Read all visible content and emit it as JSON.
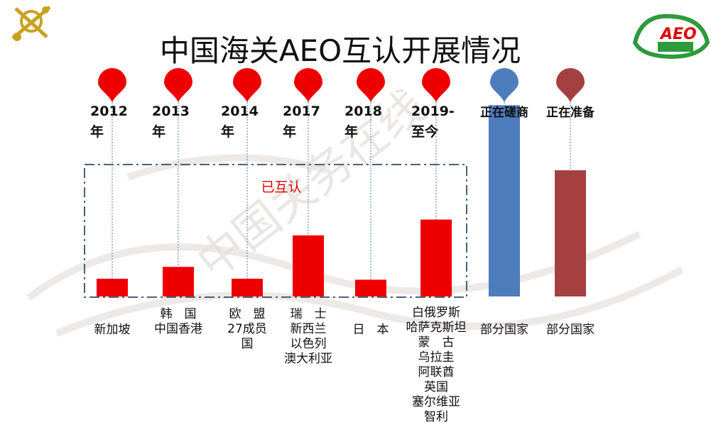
{
  "title": "中国海关AEO互认开展情况",
  "logo_right_text": "AEO",
  "watermark": "中国关务在线",
  "colors": {
    "red": "#ee0000",
    "blue": "#4e7dbd",
    "brown": "#a4403f",
    "dash": "#4a6078"
  },
  "chart_data": {
    "type": "bar",
    "title": "中国海关AEO互认开展情况",
    "group_label": "已互认",
    "ylim": [
      0,
      10
    ],
    "categories": [
      {
        "key": "2012",
        "year": [
          "2012",
          "年"
        ],
        "labels": [
          "新加坡"
        ],
        "value": 0.9,
        "color": "#ee0000",
        "marker": "#ee0000"
      },
      {
        "key": "2013",
        "year": [
          "2013",
          "年"
        ],
        "labels": [
          "韩　国",
          "中国香港"
        ],
        "value": 1.5,
        "color": "#ee0000",
        "marker": "#ee0000"
      },
      {
        "key": "2014",
        "year": [
          "2014",
          "年"
        ],
        "labels": [
          "欧　盟",
          "27成员",
          "国"
        ],
        "value": 0.9,
        "color": "#ee0000",
        "marker": "#ee0000"
      },
      {
        "key": "2017",
        "year": [
          "2017",
          "年"
        ],
        "labels": [
          "瑞　士",
          "新西兰",
          "以色列",
          "澳大利亚"
        ],
        "value": 3.1,
        "color": "#ee0000",
        "marker": "#ee0000"
      },
      {
        "key": "2018",
        "year": [
          "2018",
          "年"
        ],
        "labels": [
          "日　本"
        ],
        "value": 0.85,
        "color": "#ee0000",
        "marker": "#ee0000"
      },
      {
        "key": "2019",
        "year": [
          "2019-",
          "至今"
        ],
        "labels": [
          "白俄罗斯",
          "哈萨克斯坦",
          "蒙　古",
          "乌拉圭",
          "阿联酋",
          "英国",
          "塞尔维亚",
          "智利"
        ],
        "value": 3.9,
        "color": "#ee0000",
        "marker": "#ee0000"
      },
      {
        "key": "negotiating",
        "status": "正在磋商",
        "labels": [
          "部分国家"
        ],
        "value": 9.7,
        "color": "#4e7dbd",
        "marker": "#4e7dbd"
      },
      {
        "key": "preparing",
        "status": "正在准备",
        "labels": [
          "部分国家"
        ],
        "value": 6.4,
        "color": "#a4403f",
        "marker": "#a4403f"
      }
    ]
  }
}
